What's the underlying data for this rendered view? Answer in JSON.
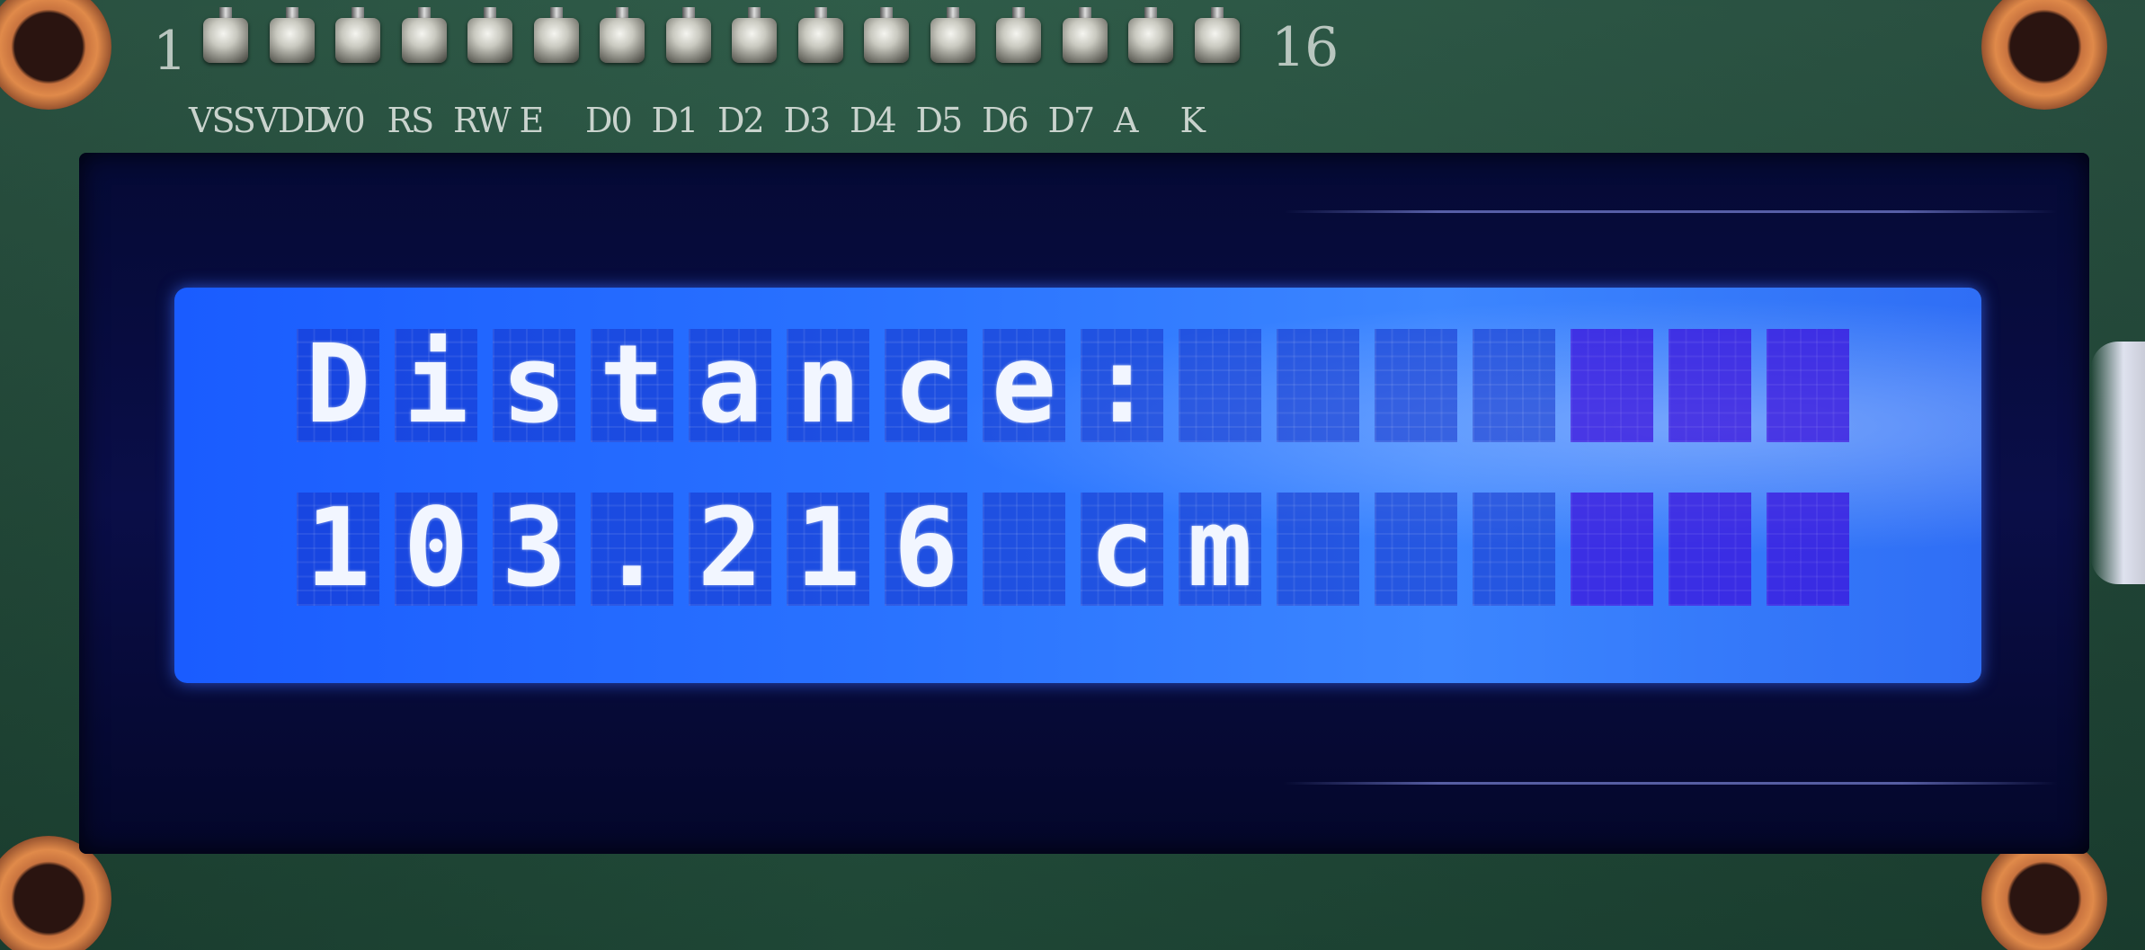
{
  "board": {
    "pin_start": "1",
    "pin_end": "16",
    "pin_labels": [
      "VSS",
      "VDD",
      "V0",
      "RS",
      "RW",
      "E",
      "D0",
      "D1",
      "D2",
      "D3",
      "D4",
      "D5",
      "D6",
      "D7",
      "A",
      "K"
    ]
  },
  "lcd": {
    "columns": 16,
    "backlight_color": "#2a73ff",
    "char_color": "#f2f6ff",
    "line1": "Distance:",
    "line2": "103.216 cm"
  }
}
